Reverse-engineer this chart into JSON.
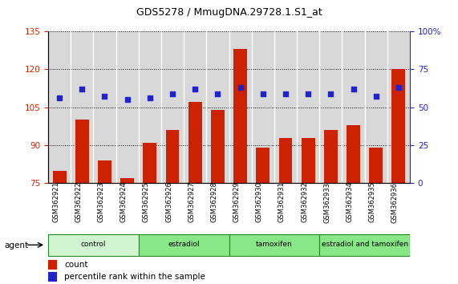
{
  "title": "GDS5278 / MmugDNA.29728.1.S1_at",
  "samples": [
    "GSM362921",
    "GSM362922",
    "GSM362923",
    "GSM362924",
    "GSM362925",
    "GSM362926",
    "GSM362927",
    "GSM362928",
    "GSM362929",
    "GSM362930",
    "GSM362931",
    "GSM362932",
    "GSM362933",
    "GSM362934",
    "GSM362935",
    "GSM362936"
  ],
  "count_values": [
    80,
    100,
    84,
    77,
    91,
    96,
    107,
    104,
    128,
    89,
    93,
    93,
    96,
    98,
    89,
    120
  ],
  "percentile_values": [
    56,
    62,
    57,
    55,
    56,
    59,
    62,
    59,
    63,
    59,
    59,
    59,
    59,
    62,
    57,
    63
  ],
  "ylim_left": [
    75,
    135
  ],
  "ylim_right": [
    0,
    100
  ],
  "yticks_left": [
    75,
    90,
    105,
    120,
    135
  ],
  "yticks_right": [
    0,
    25,
    50,
    75,
    100
  ],
  "bar_color": "#cc2200",
  "dot_color": "#2222cc",
  "legend_count_label": "count",
  "legend_percentile_label": "percentile rank within the sample",
  "agent_label": "agent",
  "group_configs": [
    {
      "label": "control",
      "start": 0,
      "end": 4,
      "color": "#d0f5d0"
    },
    {
      "label": "estradiol",
      "start": 4,
      "end": 8,
      "color": "#88e888"
    },
    {
      "label": "tamoxifen",
      "start": 8,
      "end": 12,
      "color": "#88e888"
    },
    {
      "label": "estradiol and tamoxifen",
      "start": 12,
      "end": 16,
      "color": "#88e888"
    }
  ],
  "col_bg_color": "#d8d8d8",
  "plot_bg": "#ffffff"
}
